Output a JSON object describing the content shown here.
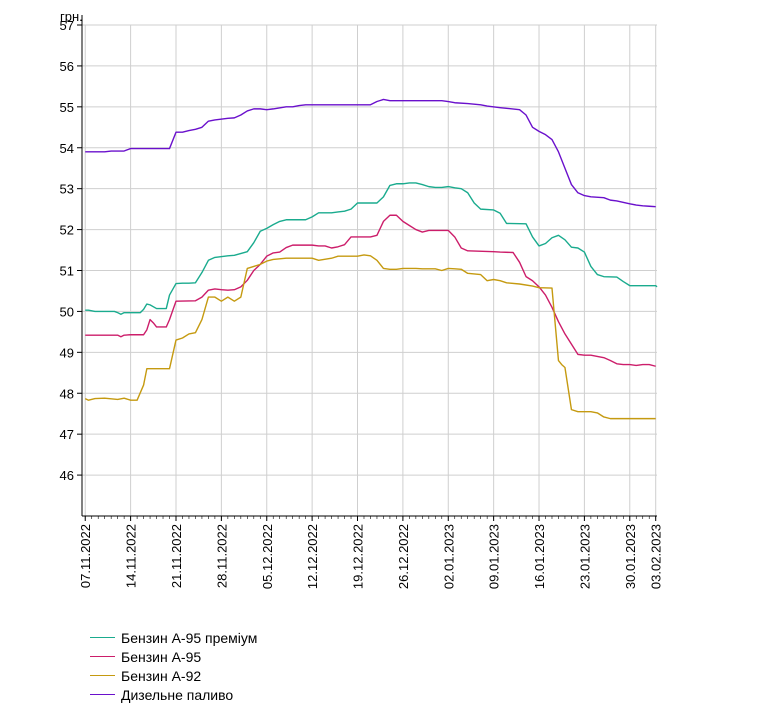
{
  "chart_data": {
    "type": "line",
    "ylabel": "грн.",
    "ylim": [
      45,
      57
    ],
    "yticks": [
      "46",
      "47",
      "48",
      "49",
      "50",
      "51",
      "52",
      "53",
      "54",
      "55",
      "56",
      "57"
    ],
    "xticks": [
      "07.11.2022",
      "14.11.2022",
      "21.11.2022",
      "28.11.2022",
      "05.12.2022",
      "12.12.2022",
      "19.12.2022",
      "26.12.2022",
      "02.01.2023",
      "09.01.2023",
      "16.01.2023",
      "23.01.2023",
      "30.01.2023",
      "03.02.2023"
    ],
    "xtick_day": [
      0,
      7,
      14,
      21,
      28,
      35,
      42,
      49,
      56,
      63,
      70,
      77,
      84,
      88
    ],
    "x_range_days": [
      -0.5,
      88.2
    ],
    "grid": true,
    "legend_position": "bottom-left",
    "series": [
      {
        "name": "Бензин А-95 преміум",
        "color": "#1aab8e",
        "points": [
          [
            0,
            50.03
          ],
          [
            0.5,
            50.03
          ],
          [
            1.5,
            50.0
          ],
          [
            3,
            50.0
          ],
          [
            4.5,
            50.0
          ],
          [
            5,
            49.97
          ],
          [
            5.5,
            49.93
          ],
          [
            6,
            49.97
          ],
          [
            7,
            49.97
          ],
          [
            8.5,
            49.97
          ],
          [
            9,
            50.05
          ],
          [
            9.5,
            50.18
          ],
          [
            10,
            50.16
          ],
          [
            11,
            50.07
          ],
          [
            12.5,
            50.07
          ],
          [
            13,
            50.4
          ],
          [
            14,
            50.68
          ],
          [
            15,
            50.69
          ],
          [
            16,
            50.69
          ],
          [
            17,
            50.7
          ],
          [
            18,
            50.95
          ],
          [
            19,
            51.25
          ],
          [
            20,
            51.32
          ],
          [
            22,
            51.36
          ],
          [
            23,
            51.37
          ],
          [
            25,
            51.46
          ],
          [
            26,
            51.68
          ],
          [
            27,
            51.96
          ],
          [
            28,
            52.03
          ],
          [
            29,
            52.12
          ],
          [
            30,
            52.2
          ],
          [
            31,
            52.24
          ],
          [
            34,
            52.24
          ],
          [
            35,
            52.31
          ],
          [
            36,
            52.41
          ],
          [
            38,
            52.41
          ],
          [
            39,
            52.43
          ],
          [
            40,
            52.45
          ],
          [
            41,
            52.5
          ],
          [
            42,
            52.65
          ],
          [
            45,
            52.65
          ],
          [
            46,
            52.8
          ],
          [
            47,
            53.08
          ],
          [
            48,
            53.12
          ],
          [
            49,
            53.12
          ],
          [
            50,
            53.14
          ],
          [
            51,
            53.14
          ],
          [
            52,
            53.1
          ],
          [
            53,
            53.05
          ],
          [
            54,
            53.03
          ],
          [
            55,
            53.03
          ],
          [
            56,
            53.05
          ],
          [
            57,
            53.02
          ],
          [
            58,
            53.0
          ],
          [
            59,
            52.9
          ],
          [
            60,
            52.65
          ],
          [
            61,
            52.5
          ],
          [
            63,
            52.48
          ],
          [
            64,
            52.4
          ],
          [
            65,
            52.15
          ],
          [
            68,
            52.14
          ],
          [
            69,
            51.82
          ],
          [
            70,
            51.6
          ],
          [
            71,
            51.66
          ],
          [
            72,
            51.8
          ],
          [
            73,
            51.86
          ],
          [
            74,
            51.75
          ],
          [
            75,
            51.57
          ],
          [
            76,
            51.55
          ],
          [
            77,
            51.45
          ],
          [
            78,
            51.1
          ],
          [
            79,
            50.9
          ],
          [
            80,
            50.85
          ],
          [
            82,
            50.84
          ],
          [
            83,
            50.73
          ],
          [
            84,
            50.63
          ],
          [
            88,
            50.63
          ],
          [
            88.2,
            50.6
          ]
        ]
      },
      {
        "name": "Бензин А-95",
        "color": "#cc1d6a",
        "points": [
          [
            0,
            49.42
          ],
          [
            5,
            49.42
          ],
          [
            5.5,
            49.38
          ],
          [
            6,
            49.42
          ],
          [
            7,
            49.43
          ],
          [
            9,
            49.43
          ],
          [
            9.5,
            49.55
          ],
          [
            10,
            49.8
          ],
          [
            10.5,
            49.72
          ],
          [
            11,
            49.62
          ],
          [
            12.5,
            49.62
          ],
          [
            13,
            49.8
          ],
          [
            14,
            50.25
          ],
          [
            17,
            50.26
          ],
          [
            18,
            50.35
          ],
          [
            19,
            50.52
          ],
          [
            20,
            50.55
          ],
          [
            21,
            50.53
          ],
          [
            22,
            50.52
          ],
          [
            23,
            50.53
          ],
          [
            24,
            50.6
          ],
          [
            25,
            50.76
          ],
          [
            26,
            51.0
          ],
          [
            27,
            51.15
          ],
          [
            28,
            51.35
          ],
          [
            29,
            51.43
          ],
          [
            30,
            51.45
          ],
          [
            31,
            51.56
          ],
          [
            32,
            51.62
          ],
          [
            35,
            51.62
          ],
          [
            36,
            51.6
          ],
          [
            37,
            51.6
          ],
          [
            38,
            51.55
          ],
          [
            39,
            51.58
          ],
          [
            40,
            51.63
          ],
          [
            41,
            51.82
          ],
          [
            44,
            51.82
          ],
          [
            45,
            51.86
          ],
          [
            46,
            52.2
          ],
          [
            47,
            52.35
          ],
          [
            48,
            52.35
          ],
          [
            49,
            52.2
          ],
          [
            50,
            52.1
          ],
          [
            51,
            52.0
          ],
          [
            52,
            51.94
          ],
          [
            53,
            51.98
          ],
          [
            55,
            51.98
          ],
          [
            56,
            51.98
          ],
          [
            57,
            51.82
          ],
          [
            58,
            51.55
          ],
          [
            59,
            51.48
          ],
          [
            63,
            51.46
          ],
          [
            64,
            51.45
          ],
          [
            66,
            51.44
          ],
          [
            67,
            51.2
          ],
          [
            68,
            50.85
          ],
          [
            69,
            50.75
          ],
          [
            70,
            50.6
          ],
          [
            71,
            50.4
          ],
          [
            72,
            50.1
          ],
          [
            73,
            49.75
          ],
          [
            74,
            49.45
          ],
          [
            75,
            49.2
          ],
          [
            76,
            48.95
          ],
          [
            77,
            48.93
          ],
          [
            78,
            48.93
          ],
          [
            79,
            48.9
          ],
          [
            80,
            48.87
          ],
          [
            81,
            48.8
          ],
          [
            82,
            48.72
          ],
          [
            83,
            48.7
          ],
          [
            84,
            48.7
          ],
          [
            85,
            48.68
          ],
          [
            86,
            48.7
          ],
          [
            87,
            48.7
          ],
          [
            88,
            48.66
          ]
        ]
      },
      {
        "name": "Бензин А-92",
        "color": "#c59a10",
        "points": [
          [
            0,
            47.87
          ],
          [
            0.5,
            47.83
          ],
          [
            1.5,
            47.87
          ],
          [
            3,
            47.88
          ],
          [
            5,
            47.85
          ],
          [
            6,
            47.88
          ],
          [
            7,
            47.83
          ],
          [
            8,
            47.83
          ],
          [
            9,
            48.2
          ],
          [
            9.5,
            48.6
          ],
          [
            13,
            48.6
          ],
          [
            14,
            49.3
          ],
          [
            15,
            49.35
          ],
          [
            16,
            49.45
          ],
          [
            17,
            49.48
          ],
          [
            18,
            49.8
          ],
          [
            19,
            50.35
          ],
          [
            20,
            50.35
          ],
          [
            21,
            50.25
          ],
          [
            22,
            50.35
          ],
          [
            23,
            50.25
          ],
          [
            24,
            50.35
          ],
          [
            25,
            51.05
          ],
          [
            26,
            51.1
          ],
          [
            27,
            51.15
          ],
          [
            28,
            51.23
          ],
          [
            29,
            51.27
          ],
          [
            31,
            51.3
          ],
          [
            33,
            51.3
          ],
          [
            35,
            51.3
          ],
          [
            36,
            51.25
          ],
          [
            38,
            51.3
          ],
          [
            39,
            51.35
          ],
          [
            42,
            51.35
          ],
          [
            43,
            51.38
          ],
          [
            44,
            51.36
          ],
          [
            45,
            51.25
          ],
          [
            46,
            51.05
          ],
          [
            47,
            51.03
          ],
          [
            48,
            51.03
          ],
          [
            49,
            51.05
          ],
          [
            51,
            51.05
          ],
          [
            52,
            51.04
          ],
          [
            54,
            51.04
          ],
          [
            55,
            51.0
          ],
          [
            56,
            51.05
          ],
          [
            57,
            51.04
          ],
          [
            58,
            51.03
          ],
          [
            59,
            50.93
          ],
          [
            61,
            50.9
          ],
          [
            62,
            50.75
          ],
          [
            63,
            50.78
          ],
          [
            64,
            50.75
          ],
          [
            65,
            50.7
          ],
          [
            67,
            50.67
          ],
          [
            69,
            50.62
          ],
          [
            70,
            50.58
          ],
          [
            72,
            50.57
          ],
          [
            73,
            48.8
          ],
          [
            73.5,
            48.7
          ],
          [
            74,
            48.63
          ],
          [
            75,
            47.6
          ],
          [
            76,
            47.55
          ],
          [
            77,
            47.55
          ],
          [
            78,
            47.55
          ],
          [
            79,
            47.52
          ],
          [
            80,
            47.42
          ],
          [
            81,
            47.38
          ],
          [
            84,
            47.38
          ],
          [
            88,
            47.38
          ]
        ]
      },
      {
        "name": "Дизельне паливо",
        "color": "#6a10cc",
        "points": [
          [
            0,
            53.9
          ],
          [
            3,
            53.9
          ],
          [
            4,
            53.92
          ],
          [
            6,
            53.92
          ],
          [
            7,
            53.98
          ],
          [
            13,
            53.98
          ],
          [
            14,
            54.38
          ],
          [
            15,
            54.38
          ],
          [
            16,
            54.42
          ],
          [
            17,
            54.45
          ],
          [
            18,
            54.5
          ],
          [
            19,
            54.65
          ],
          [
            20,
            54.68
          ],
          [
            22,
            54.72
          ],
          [
            23,
            54.73
          ],
          [
            24,
            54.8
          ],
          [
            25,
            54.9
          ],
          [
            26,
            54.95
          ],
          [
            27,
            54.95
          ],
          [
            28,
            54.93
          ],
          [
            29,
            54.95
          ],
          [
            31,
            55.0
          ],
          [
            32,
            55.0
          ],
          [
            33,
            55.03
          ],
          [
            34,
            55.05
          ],
          [
            44,
            55.05
          ],
          [
            45,
            55.13
          ],
          [
            46,
            55.18
          ],
          [
            47,
            55.15
          ],
          [
            55,
            55.15
          ],
          [
            56,
            55.13
          ],
          [
            57,
            55.1
          ],
          [
            59,
            55.08
          ],
          [
            61,
            55.05
          ],
          [
            62,
            55.02
          ],
          [
            64,
            54.98
          ],
          [
            67,
            54.93
          ],
          [
            68,
            54.8
          ],
          [
            69,
            54.5
          ],
          [
            70,
            54.4
          ],
          [
            71,
            54.32
          ],
          [
            72,
            54.2
          ],
          [
            73,
            53.9
          ],
          [
            74,
            53.5
          ],
          [
            75,
            53.1
          ],
          [
            76,
            52.9
          ],
          [
            77,
            52.83
          ],
          [
            78,
            52.8
          ],
          [
            80,
            52.78
          ],
          [
            81,
            52.72
          ],
          [
            82,
            52.7
          ],
          [
            84,
            52.63
          ],
          [
            85,
            52.6
          ],
          [
            86,
            52.58
          ],
          [
            87,
            52.57
          ],
          [
            88,
            52.56
          ]
        ]
      }
    ]
  }
}
